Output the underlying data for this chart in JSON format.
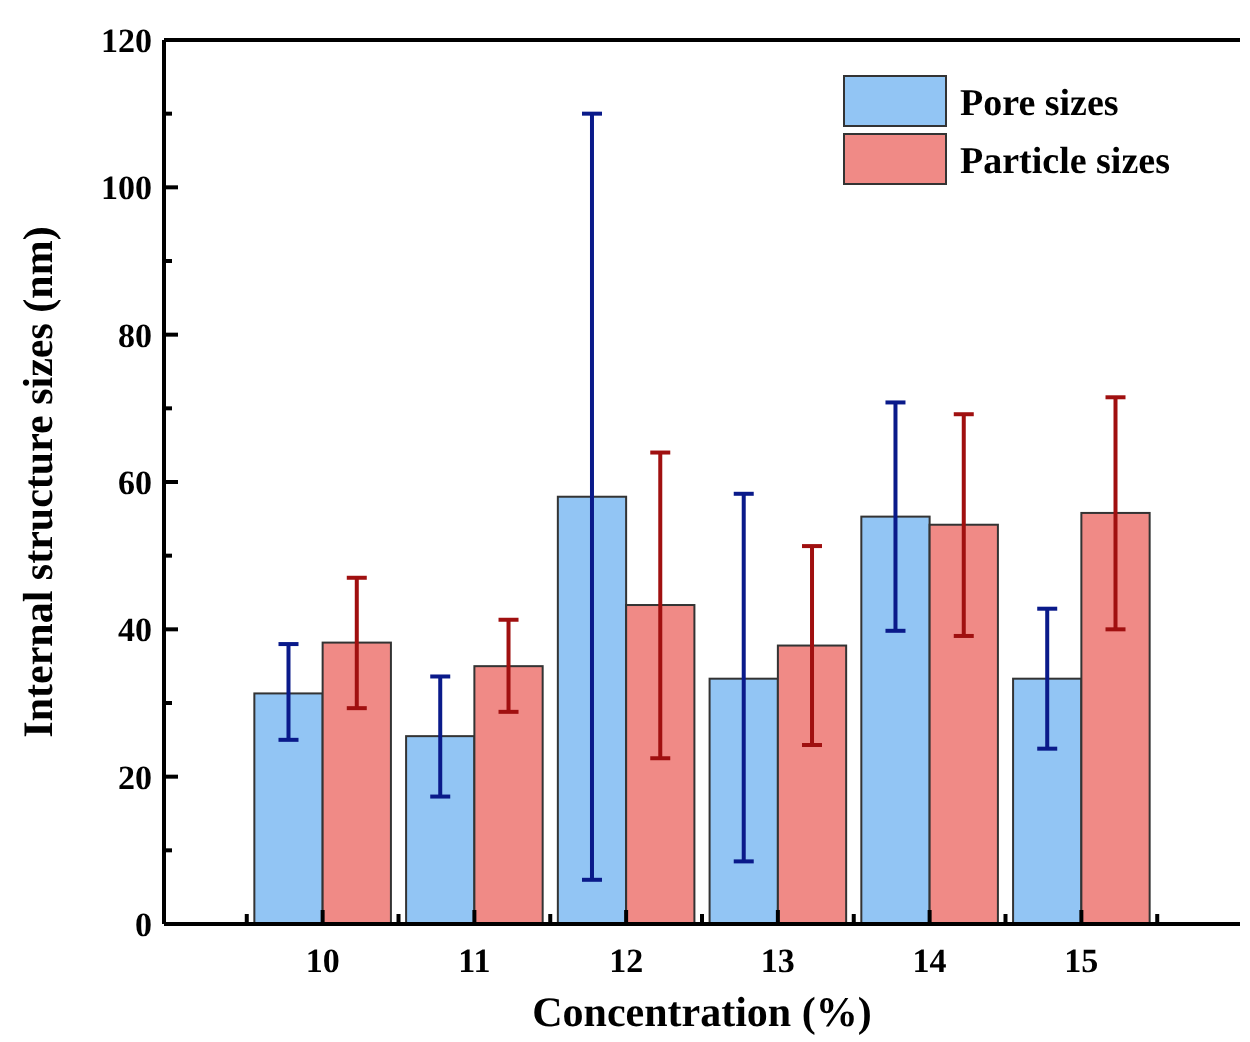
{
  "chart_data": {
    "type": "bar",
    "xlabel": "Concentration (%)",
    "ylabel": "Internal structure sizes (nm)",
    "categories": [
      "10",
      "11",
      "12",
      "13",
      "14",
      "15"
    ],
    "series": [
      {
        "name": "Pore sizes",
        "color": "#92c5f4",
        "values": [
          31.3,
          25.5,
          58,
          33.3,
          55.3,
          33.3
        ],
        "errors": [
          [
            25,
            38
          ],
          [
            17.3,
            33.6
          ],
          [
            6,
            110
          ],
          [
            8.5,
            58.4
          ],
          [
            39.8,
            70.8
          ],
          [
            23.8,
            42.8
          ]
        ]
      },
      {
        "name": "Particle sizes",
        "color": "#f08a86",
        "values": [
          38.2,
          35,
          43.3,
          37.8,
          54.2,
          55.8
        ],
        "errors": [
          [
            29.3,
            47
          ],
          [
            28.8,
            41.3
          ],
          [
            22.5,
            64
          ],
          [
            24.3,
            51.3
          ],
          [
            39.1,
            69.2
          ],
          [
            40,
            71.5
          ]
        ]
      }
    ],
    "ylim": [
      0,
      120
    ],
    "yticks": [
      0,
      {
        "value": 10,
        "label": null
      },
      20,
      {
        "value": 30,
        "label": null
      },
      40,
      {
        "value": 50,
        "label": null
      },
      60,
      {
        "value": 70,
        "label": null
      },
      80,
      {
        "value": 90,
        "label": null
      },
      100,
      {
        "value": 110,
        "label": null
      },
      120
    ],
    "legend": "top right",
    "grid": false
  }
}
